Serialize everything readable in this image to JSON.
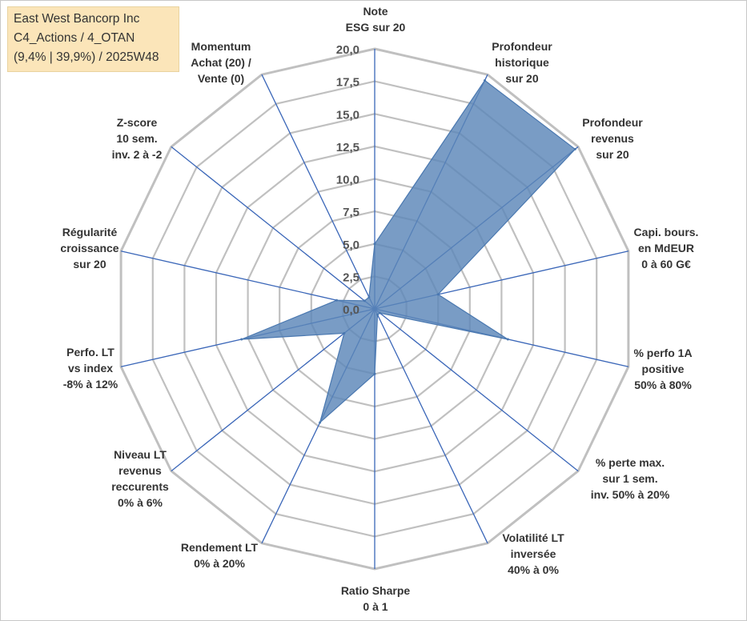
{
  "title_box": {
    "line1": "East West Bancorp Inc",
    "line2": "C4_Actions / 4_OTAN",
    "line3": "(9,4% | 39,9%) / 2025W48"
  },
  "chart_data": {
    "type": "radar",
    "title": "East West Bancorp Inc",
    "rlim": [
      0,
      20
    ],
    "ticks": [
      "0,0",
      "2,5",
      "5,0",
      "7,5",
      "10,0",
      "12,5",
      "15,0",
      "17,5",
      "20,0"
    ],
    "tick_values": [
      0,
      2.5,
      5,
      7.5,
      10,
      12.5,
      15,
      17.5,
      20
    ],
    "grid": true,
    "colors": {
      "fill": "#5b86b8",
      "stroke": "#4a78b0",
      "grid": "#c0c0c0",
      "spoke": "#3a66b8"
    },
    "axes": [
      {
        "label": [
          "Note",
          "ESG sur 20"
        ],
        "value": 5.0
      },
      {
        "label": [
          "Profondeur",
          "historique",
          "sur 20"
        ],
        "value": 19.5
      },
      {
        "label": [
          "Profondeur",
          "revenus",
          "sur 20"
        ],
        "value": 19.7
      },
      {
        "label": [
          "Capi. bours.",
          "en MdEUR",
          "0 à 60 G€"
        ],
        "value": 5.0
      },
      {
        "label": [
          "% perfo 1A",
          "positive",
          "50% à 80%"
        ],
        "value": 10.5
      },
      {
        "label": [
          "% perte max.",
          "sur 1 sem.",
          "inv. 50% à 20%"
        ],
        "value": 0.5
      },
      {
        "label": [
          "Volatilité LT",
          "inversée",
          "40% à 0%"
        ],
        "value": 0.5
      },
      {
        "label": [
          "Ratio Sharpe",
          "0 à 1"
        ],
        "value": 5.0
      },
      {
        "label": [
          "Rendement LT",
          "0% à 20%"
        ],
        "value": 9.7
      },
      {
        "label": [
          "Niveau LT",
          "revenus",
          "reccurents",
          "0% à 6%"
        ],
        "value": 3.0
      },
      {
        "label": [
          "Perfo. LT",
          "vs index",
          "-8% à 12%"
        ],
        "value": 10.5
      },
      {
        "label": [
          "Régularité",
          "croissance",
          "sur 20"
        ],
        "value": 3.0
      },
      {
        "label": [
          "Z-score",
          "10 sem.",
          "inv. 2 à -2"
        ],
        "value": 1.0
      },
      {
        "label": [
          "Momentum",
          "Achat (20) /",
          "Vente (0)"
        ],
        "value": 1.0
      }
    ]
  }
}
